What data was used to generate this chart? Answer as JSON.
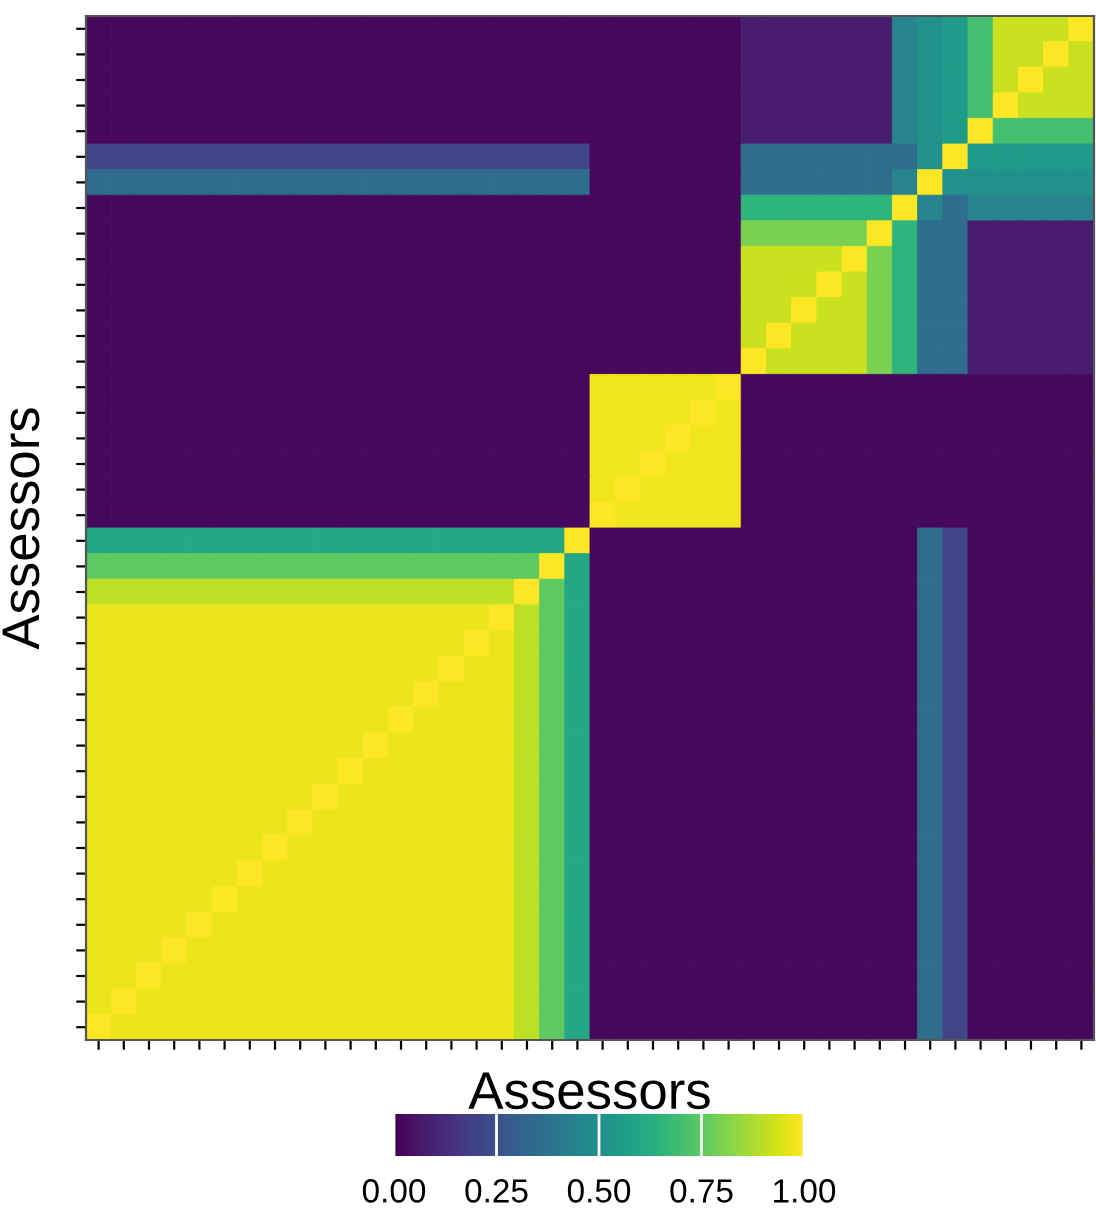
{
  "chart_data": {
    "type": "heatmap",
    "xlabel": "Assessors",
    "ylabel": "Assessors",
    "categories": [
      null,
      null,
      null,
      null,
      null,
      null,
      null,
      null,
      null,
      null,
      null,
      null,
      null,
      null,
      null,
      null,
      null,
      null,
      null,
      null,
      null,
      null,
      null,
      null,
      null,
      null,
      null,
      null,
      null,
      null,
      null,
      null,
      null,
      null,
      null,
      null,
      null,
      null,
      null,
      null
    ],
    "y_categories": [
      null,
      null,
      null,
      null,
      null,
      null,
      null,
      null,
      null,
      null,
      null,
      null,
      null,
      null,
      null,
      null,
      null,
      null,
      null,
      null,
      null,
      null,
      null,
      null,
      null,
      null,
      null,
      null,
      null,
      null,
      null,
      null,
      null,
      null,
      null,
      null,
      null,
      null,
      null,
      null
    ],
    "clim": [
      0,
      1
    ],
    "cticks": [
      {
        "value": 0,
        "label": "0.00"
      },
      {
        "value": 0.25,
        "label": "0.25"
      },
      {
        "value": 0.5,
        "label": "0.50"
      },
      {
        "value": 0.75,
        "label": "0.75"
      },
      {
        "value": 1,
        "label": "1.00"
      }
    ],
    "cells": [
      [
        0.02,
        0.02,
        0.02,
        0.02,
        0.02,
        0.02,
        0.02,
        0.02,
        0.02,
        0.02,
        0.02,
        0.02,
        0.02,
        0.02,
        0.02,
        0.02,
        0.02,
        0.02,
        0.02,
        0.02,
        0.02,
        0.02,
        0.02,
        0.02,
        0.02,
        0.02,
        0.08,
        0.08,
        0.08,
        0.08,
        0.08,
        0.08,
        0.45,
        0.5,
        0.55,
        0.7,
        0.92,
        0.92,
        0.92,
        1
      ],
      [
        0.02,
        0.02,
        0.02,
        0.02,
        0.02,
        0.02,
        0.02,
        0.02,
        0.02,
        0.02,
        0.02,
        0.02,
        0.02,
        0.02,
        0.02,
        0.02,
        0.02,
        0.02,
        0.02,
        0.02,
        0.02,
        0.02,
        0.02,
        0.02,
        0.02,
        0.02,
        0.08,
        0.08,
        0.08,
        0.08,
        0.08,
        0.08,
        0.45,
        0.5,
        0.55,
        0.7,
        0.92,
        0.92,
        1,
        0.92
      ],
      [
        0.02,
        0.02,
        0.02,
        0.02,
        0.02,
        0.02,
        0.02,
        0.02,
        0.02,
        0.02,
        0.02,
        0.02,
        0.02,
        0.02,
        0.02,
        0.02,
        0.02,
        0.02,
        0.02,
        0.02,
        0.02,
        0.02,
        0.02,
        0.02,
        0.02,
        0.02,
        0.08,
        0.08,
        0.08,
        0.08,
        0.08,
        0.08,
        0.45,
        0.5,
        0.55,
        0.7,
        0.92,
        1,
        0.92,
        0.92
      ],
      [
        0.02,
        0.02,
        0.02,
        0.02,
        0.02,
        0.02,
        0.02,
        0.02,
        0.02,
        0.02,
        0.02,
        0.02,
        0.02,
        0.02,
        0.02,
        0.02,
        0.02,
        0.02,
        0.02,
        0.02,
        0.02,
        0.02,
        0.02,
        0.02,
        0.02,
        0.02,
        0.08,
        0.08,
        0.08,
        0.08,
        0.08,
        0.08,
        0.45,
        0.5,
        0.55,
        0.7,
        1,
        0.92,
        0.92,
        0.92
      ],
      [
        0.02,
        0.02,
        0.02,
        0.02,
        0.02,
        0.02,
        0.02,
        0.02,
        0.02,
        0.02,
        0.02,
        0.02,
        0.02,
        0.02,
        0.02,
        0.02,
        0.02,
        0.02,
        0.02,
        0.02,
        0.02,
        0.02,
        0.02,
        0.02,
        0.02,
        0.02,
        0.08,
        0.08,
        0.08,
        0.08,
        0.08,
        0.08,
        0.45,
        0.5,
        0.55,
        1,
        0.7,
        0.7,
        0.7,
        0.7
      ],
      [
        0.2,
        0.2,
        0.2,
        0.2,
        0.2,
        0.2,
        0.2,
        0.2,
        0.2,
        0.2,
        0.2,
        0.2,
        0.2,
        0.2,
        0.2,
        0.2,
        0.2,
        0.2,
        0.2,
        0.2,
        0.02,
        0.02,
        0.02,
        0.02,
        0.02,
        0.02,
        0.35,
        0.35,
        0.35,
        0.35,
        0.35,
        0.35,
        0.35,
        0.5,
        1,
        0.55,
        0.55,
        0.55,
        0.55,
        0.55
      ],
      [
        0.35,
        0.35,
        0.35,
        0.35,
        0.35,
        0.35,
        0.35,
        0.35,
        0.35,
        0.35,
        0.35,
        0.35,
        0.35,
        0.35,
        0.35,
        0.35,
        0.35,
        0.35,
        0.35,
        0.35,
        0.02,
        0.02,
        0.02,
        0.02,
        0.02,
        0.02,
        0.35,
        0.35,
        0.35,
        0.35,
        0.35,
        0.35,
        0.45,
        1,
        0.5,
        0.5,
        0.5,
        0.5,
        0.5,
        0.5
      ],
      [
        0.02,
        0.02,
        0.02,
        0.02,
        0.02,
        0.02,
        0.02,
        0.02,
        0.02,
        0.02,
        0.02,
        0.02,
        0.02,
        0.02,
        0.02,
        0.02,
        0.02,
        0.02,
        0.02,
        0.02,
        0.02,
        0.02,
        0.02,
        0.02,
        0.02,
        0.02,
        0.65,
        0.65,
        0.65,
        0.65,
        0.65,
        0.65,
        1,
        0.45,
        0.35,
        0.45,
        0.45,
        0.45,
        0.45,
        0.45
      ],
      [
        0.02,
        0.02,
        0.02,
        0.02,
        0.02,
        0.02,
        0.02,
        0.02,
        0.02,
        0.02,
        0.02,
        0.02,
        0.02,
        0.02,
        0.02,
        0.02,
        0.02,
        0.02,
        0.02,
        0.02,
        0.02,
        0.02,
        0.02,
        0.02,
        0.02,
        0.02,
        0.8,
        0.8,
        0.8,
        0.8,
        0.8,
        1,
        0.65,
        0.35,
        0.35,
        0.08,
        0.08,
        0.08,
        0.08,
        0.08
      ],
      [
        0.02,
        0.02,
        0.02,
        0.02,
        0.02,
        0.02,
        0.02,
        0.02,
        0.02,
        0.02,
        0.02,
        0.02,
        0.02,
        0.02,
        0.02,
        0.02,
        0.02,
        0.02,
        0.02,
        0.02,
        0.02,
        0.02,
        0.02,
        0.02,
        0.02,
        0.02,
        0.92,
        0.92,
        0.92,
        0.92,
        1,
        0.8,
        0.65,
        0.35,
        0.35,
        0.08,
        0.08,
        0.08,
        0.08,
        0.08
      ],
      [
        0.02,
        0.02,
        0.02,
        0.02,
        0.02,
        0.02,
        0.02,
        0.02,
        0.02,
        0.02,
        0.02,
        0.02,
        0.02,
        0.02,
        0.02,
        0.02,
        0.02,
        0.02,
        0.02,
        0.02,
        0.02,
        0.02,
        0.02,
        0.02,
        0.02,
        0.02,
        0.92,
        0.92,
        0.92,
        1,
        0.92,
        0.8,
        0.65,
        0.35,
        0.35,
        0.08,
        0.08,
        0.08,
        0.08,
        0.08
      ],
      [
        0.02,
        0.02,
        0.02,
        0.02,
        0.02,
        0.02,
        0.02,
        0.02,
        0.02,
        0.02,
        0.02,
        0.02,
        0.02,
        0.02,
        0.02,
        0.02,
        0.02,
        0.02,
        0.02,
        0.02,
        0.02,
        0.02,
        0.02,
        0.02,
        0.02,
        0.02,
        0.92,
        0.92,
        1,
        0.92,
        0.92,
        0.8,
        0.65,
        0.35,
        0.35,
        0.08,
        0.08,
        0.08,
        0.08,
        0.08
      ],
      [
        0.02,
        0.02,
        0.02,
        0.02,
        0.02,
        0.02,
        0.02,
        0.02,
        0.02,
        0.02,
        0.02,
        0.02,
        0.02,
        0.02,
        0.02,
        0.02,
        0.02,
        0.02,
        0.02,
        0.02,
        0.02,
        0.02,
        0.02,
        0.02,
        0.02,
        0.02,
        0.92,
        1,
        0.92,
        0.92,
        0.92,
        0.8,
        0.65,
        0.35,
        0.35,
        0.08,
        0.08,
        0.08,
        0.08,
        0.08
      ],
      [
        0.02,
        0.02,
        0.02,
        0.02,
        0.02,
        0.02,
        0.02,
        0.02,
        0.02,
        0.02,
        0.02,
        0.02,
        0.02,
        0.02,
        0.02,
        0.02,
        0.02,
        0.02,
        0.02,
        0.02,
        0.02,
        0.02,
        0.02,
        0.02,
        0.02,
        0.02,
        1,
        0.92,
        0.92,
        0.92,
        0.92,
        0.8,
        0.65,
        0.35,
        0.35,
        0.08,
        0.08,
        0.08,
        0.08,
        0.08
      ],
      [
        0.02,
        0.02,
        0.02,
        0.02,
        0.02,
        0.02,
        0.02,
        0.02,
        0.02,
        0.02,
        0.02,
        0.02,
        0.02,
        0.02,
        0.02,
        0.02,
        0.02,
        0.02,
        0.02,
        0.02,
        0.98,
        0.98,
        0.98,
        0.98,
        0.98,
        1,
        0.02,
        0.02,
        0.02,
        0.02,
        0.02,
        0.02,
        0.02,
        0.02,
        0.02,
        0.02,
        0.02,
        0.02,
        0.02,
        0.02
      ],
      [
        0.02,
        0.02,
        0.02,
        0.02,
        0.02,
        0.02,
        0.02,
        0.02,
        0.02,
        0.02,
        0.02,
        0.02,
        0.02,
        0.02,
        0.02,
        0.02,
        0.02,
        0.02,
        0.02,
        0.02,
        0.98,
        0.98,
        0.98,
        0.98,
        1,
        0.98,
        0.02,
        0.02,
        0.02,
        0.02,
        0.02,
        0.02,
        0.02,
        0.02,
        0.02,
        0.02,
        0.02,
        0.02,
        0.02,
        0.02
      ],
      [
        0.02,
        0.02,
        0.02,
        0.02,
        0.02,
        0.02,
        0.02,
        0.02,
        0.02,
        0.02,
        0.02,
        0.02,
        0.02,
        0.02,
        0.02,
        0.02,
        0.02,
        0.02,
        0.02,
        0.02,
        0.98,
        0.98,
        0.98,
        1,
        0.98,
        0.98,
        0.02,
        0.02,
        0.02,
        0.02,
        0.02,
        0.02,
        0.02,
        0.02,
        0.02,
        0.02,
        0.02,
        0.02,
        0.02,
        0.02
      ],
      [
        0.02,
        0.02,
        0.02,
        0.02,
        0.02,
        0.02,
        0.02,
        0.02,
        0.02,
        0.02,
        0.02,
        0.02,
        0.02,
        0.02,
        0.02,
        0.02,
        0.02,
        0.02,
        0.02,
        0.02,
        0.98,
        0.98,
        1,
        0.98,
        0.98,
        0.98,
        0.02,
        0.02,
        0.02,
        0.02,
        0.02,
        0.02,
        0.02,
        0.02,
        0.02,
        0.02,
        0.02,
        0.02,
        0.02,
        0.02
      ],
      [
        0.02,
        0.02,
        0.02,
        0.02,
        0.02,
        0.02,
        0.02,
        0.02,
        0.02,
        0.02,
        0.02,
        0.02,
        0.02,
        0.02,
        0.02,
        0.02,
        0.02,
        0.02,
        0.02,
        0.02,
        0.98,
        1,
        0.98,
        0.98,
        0.98,
        0.98,
        0.02,
        0.02,
        0.02,
        0.02,
        0.02,
        0.02,
        0.02,
        0.02,
        0.02,
        0.02,
        0.02,
        0.02,
        0.02,
        0.02
      ],
      [
        0.02,
        0.02,
        0.02,
        0.02,
        0.02,
        0.02,
        0.02,
        0.02,
        0.02,
        0.02,
        0.02,
        0.02,
        0.02,
        0.02,
        0.02,
        0.02,
        0.02,
        0.02,
        0.02,
        0.02,
        1,
        0.98,
        0.98,
        0.98,
        0.98,
        0.98,
        0.02,
        0.02,
        0.02,
        0.02,
        0.02,
        0.02,
        0.02,
        0.02,
        0.02,
        0.02,
        0.02,
        0.02,
        0.02,
        0.02
      ],
      [
        0.6,
        0.6,
        0.6,
        0.6,
        0.6,
        0.6,
        0.6,
        0.6,
        0.6,
        0.6,
        0.6,
        0.6,
        0.6,
        0.6,
        0.6,
        0.6,
        0.6,
        0.6,
        0.6,
        1,
        0.02,
        0.02,
        0.02,
        0.02,
        0.02,
        0.02,
        0.02,
        0.02,
        0.02,
        0.02,
        0.02,
        0.02,
        0.02,
        0.35,
        0.2,
        0.02,
        0.02,
        0.02,
        0.02,
        0.02
      ],
      [
        0.75,
        0.75,
        0.75,
        0.75,
        0.75,
        0.75,
        0.75,
        0.75,
        0.75,
        0.75,
        0.75,
        0.75,
        0.75,
        0.75,
        0.75,
        0.75,
        0.75,
        0.75,
        1,
        0.6,
        0.02,
        0.02,
        0.02,
        0.02,
        0.02,
        0.02,
        0.02,
        0.02,
        0.02,
        0.02,
        0.02,
        0.02,
        0.02,
        0.35,
        0.2,
        0.02,
        0.02,
        0.02,
        0.02,
        0.02
      ],
      [
        0.9,
        0.9,
        0.9,
        0.9,
        0.9,
        0.9,
        0.9,
        0.9,
        0.9,
        0.9,
        0.9,
        0.9,
        0.9,
        0.9,
        0.9,
        0.9,
        0.9,
        1,
        0.75,
        0.6,
        0.02,
        0.02,
        0.02,
        0.02,
        0.02,
        0.02,
        0.02,
        0.02,
        0.02,
        0.02,
        0.02,
        0.02,
        0.02,
        0.35,
        0.2,
        0.02,
        0.02,
        0.02,
        0.02,
        0.02
      ],
      [
        0.97,
        0.97,
        0.97,
        0.97,
        0.97,
        0.97,
        0.97,
        0.97,
        0.97,
        0.97,
        0.97,
        0.97,
        0.97,
        0.97,
        0.97,
        0.97,
        1,
        0.9,
        0.75,
        0.6,
        0.02,
        0.02,
        0.02,
        0.02,
        0.02,
        0.02,
        0.02,
        0.02,
        0.02,
        0.02,
        0.02,
        0.02,
        0.02,
        0.35,
        0.2,
        0.02,
        0.02,
        0.02,
        0.02,
        0.02
      ],
      [
        0.97,
        0.97,
        0.97,
        0.97,
        0.97,
        0.97,
        0.97,
        0.97,
        0.97,
        0.97,
        0.97,
        0.97,
        0.97,
        0.97,
        0.97,
        1,
        0.97,
        0.9,
        0.75,
        0.6,
        0.02,
        0.02,
        0.02,
        0.02,
        0.02,
        0.02,
        0.02,
        0.02,
        0.02,
        0.02,
        0.02,
        0.02,
        0.02,
        0.35,
        0.2,
        0.02,
        0.02,
        0.02,
        0.02,
        0.02
      ],
      [
        0.97,
        0.97,
        0.97,
        0.97,
        0.97,
        0.97,
        0.97,
        0.97,
        0.97,
        0.97,
        0.97,
        0.97,
        0.97,
        0.97,
        1,
        0.97,
        0.97,
        0.9,
        0.75,
        0.6,
        0.02,
        0.02,
        0.02,
        0.02,
        0.02,
        0.02,
        0.02,
        0.02,
        0.02,
        0.02,
        0.02,
        0.02,
        0.02,
        0.35,
        0.2,
        0.02,
        0.02,
        0.02,
        0.02,
        0.02
      ],
      [
        0.97,
        0.97,
        0.97,
        0.97,
        0.97,
        0.97,
        0.97,
        0.97,
        0.97,
        0.97,
        0.97,
        0.97,
        0.97,
        1,
        0.97,
        0.97,
        0.97,
        0.9,
        0.75,
        0.6,
        0.02,
        0.02,
        0.02,
        0.02,
        0.02,
        0.02,
        0.02,
        0.02,
        0.02,
        0.02,
        0.02,
        0.02,
        0.02,
        0.35,
        0.2,
        0.02,
        0.02,
        0.02,
        0.02,
        0.02
      ],
      [
        0.97,
        0.97,
        0.97,
        0.97,
        0.97,
        0.97,
        0.97,
        0.97,
        0.97,
        0.97,
        0.97,
        0.97,
        1,
        0.97,
        0.97,
        0.97,
        0.97,
        0.9,
        0.75,
        0.6,
        0.02,
        0.02,
        0.02,
        0.02,
        0.02,
        0.02,
        0.02,
        0.02,
        0.02,
        0.02,
        0.02,
        0.02,
        0.02,
        0.35,
        0.2,
        0.02,
        0.02,
        0.02,
        0.02,
        0.02
      ],
      [
        0.97,
        0.97,
        0.97,
        0.97,
        0.97,
        0.97,
        0.97,
        0.97,
        0.97,
        0.97,
        0.97,
        1,
        0.97,
        0.97,
        0.97,
        0.97,
        0.97,
        0.9,
        0.75,
        0.6,
        0.02,
        0.02,
        0.02,
        0.02,
        0.02,
        0.02,
        0.02,
        0.02,
        0.02,
        0.02,
        0.02,
        0.02,
        0.02,
        0.35,
        0.2,
        0.02,
        0.02,
        0.02,
        0.02,
        0.02
      ],
      [
        0.97,
        0.97,
        0.97,
        0.97,
        0.97,
        0.97,
        0.97,
        0.97,
        0.97,
        0.97,
        1,
        0.97,
        0.97,
        0.97,
        0.97,
        0.97,
        0.97,
        0.9,
        0.75,
        0.6,
        0.02,
        0.02,
        0.02,
        0.02,
        0.02,
        0.02,
        0.02,
        0.02,
        0.02,
        0.02,
        0.02,
        0.02,
        0.02,
        0.35,
        0.2,
        0.02,
        0.02,
        0.02,
        0.02,
        0.02
      ],
      [
        0.97,
        0.97,
        0.97,
        0.97,
        0.97,
        0.97,
        0.97,
        0.97,
        0.97,
        1,
        0.97,
        0.97,
        0.97,
        0.97,
        0.97,
        0.97,
        0.97,
        0.9,
        0.75,
        0.6,
        0.02,
        0.02,
        0.02,
        0.02,
        0.02,
        0.02,
        0.02,
        0.02,
        0.02,
        0.02,
        0.02,
        0.02,
        0.02,
        0.35,
        0.2,
        0.02,
        0.02,
        0.02,
        0.02,
        0.02
      ],
      [
        0.97,
        0.97,
        0.97,
        0.97,
        0.97,
        0.97,
        0.97,
        0.97,
        1,
        0.97,
        0.97,
        0.97,
        0.97,
        0.97,
        0.97,
        0.97,
        0.97,
        0.9,
        0.75,
        0.6,
        0.02,
        0.02,
        0.02,
        0.02,
        0.02,
        0.02,
        0.02,
        0.02,
        0.02,
        0.02,
        0.02,
        0.02,
        0.02,
        0.35,
        0.2,
        0.02,
        0.02,
        0.02,
        0.02,
        0.02
      ],
      [
        0.97,
        0.97,
        0.97,
        0.97,
        0.97,
        0.97,
        0.97,
        1,
        0.97,
        0.97,
        0.97,
        0.97,
        0.97,
        0.97,
        0.97,
        0.97,
        0.97,
        0.9,
        0.75,
        0.6,
        0.02,
        0.02,
        0.02,
        0.02,
        0.02,
        0.02,
        0.02,
        0.02,
        0.02,
        0.02,
        0.02,
        0.02,
        0.02,
        0.35,
        0.2,
        0.02,
        0.02,
        0.02,
        0.02,
        0.02
      ],
      [
        0.97,
        0.97,
        0.97,
        0.97,
        0.97,
        0.97,
        1,
        0.97,
        0.97,
        0.97,
        0.97,
        0.97,
        0.97,
        0.97,
        0.97,
        0.97,
        0.97,
        0.9,
        0.75,
        0.6,
        0.02,
        0.02,
        0.02,
        0.02,
        0.02,
        0.02,
        0.02,
        0.02,
        0.02,
        0.02,
        0.02,
        0.02,
        0.02,
        0.35,
        0.2,
        0.02,
        0.02,
        0.02,
        0.02,
        0.02
      ],
      [
        0.97,
        0.97,
        0.97,
        0.97,
        0.97,
        1,
        0.97,
        0.97,
        0.97,
        0.97,
        0.97,
        0.97,
        0.97,
        0.97,
        0.97,
        0.97,
        0.97,
        0.9,
        0.75,
        0.6,
        0.02,
        0.02,
        0.02,
        0.02,
        0.02,
        0.02,
        0.02,
        0.02,
        0.02,
        0.02,
        0.02,
        0.02,
        0.02,
        0.35,
        0.2,
        0.02,
        0.02,
        0.02,
        0.02,
        0.02
      ],
      [
        0.97,
        0.97,
        0.97,
        0.97,
        1,
        0.97,
        0.97,
        0.97,
        0.97,
        0.97,
        0.97,
        0.97,
        0.97,
        0.97,
        0.97,
        0.97,
        0.97,
        0.9,
        0.75,
        0.6,
        0.02,
        0.02,
        0.02,
        0.02,
        0.02,
        0.02,
        0.02,
        0.02,
        0.02,
        0.02,
        0.02,
        0.02,
        0.02,
        0.35,
        0.2,
        0.02,
        0.02,
        0.02,
        0.02,
        0.02
      ],
      [
        0.97,
        0.97,
        0.97,
        1,
        0.97,
        0.97,
        0.97,
        0.97,
        0.97,
        0.97,
        0.97,
        0.97,
        0.97,
        0.97,
        0.97,
        0.97,
        0.97,
        0.9,
        0.75,
        0.6,
        0.02,
        0.02,
        0.02,
        0.02,
        0.02,
        0.02,
        0.02,
        0.02,
        0.02,
        0.02,
        0.02,
        0.02,
        0.02,
        0.35,
        0.2,
        0.02,
        0.02,
        0.02,
        0.02,
        0.02
      ],
      [
        0.97,
        0.97,
        1,
        0.97,
        0.97,
        0.97,
        0.97,
        0.97,
        0.97,
        0.97,
        0.97,
        0.97,
        0.97,
        0.97,
        0.97,
        0.97,
        0.97,
        0.9,
        0.75,
        0.6,
        0.02,
        0.02,
        0.02,
        0.02,
        0.02,
        0.02,
        0.02,
        0.02,
        0.02,
        0.02,
        0.02,
        0.02,
        0.02,
        0.35,
        0.2,
        0.02,
        0.02,
        0.02,
        0.02,
        0.02
      ],
      [
        0.97,
        1,
        0.97,
        0.97,
        0.97,
        0.97,
        0.97,
        0.97,
        0.97,
        0.97,
        0.97,
        0.97,
        0.97,
        0.97,
        0.97,
        0.97,
        0.97,
        0.9,
        0.75,
        0.6,
        0.02,
        0.02,
        0.02,
        0.02,
        0.02,
        0.02,
        0.02,
        0.02,
        0.02,
        0.02,
        0.02,
        0.02,
        0.02,
        0.35,
        0.2,
        0.02,
        0.02,
        0.02,
        0.02,
        0.02
      ],
      [
        1,
        0.97,
        0.97,
        0.97,
        0.97,
        0.97,
        0.97,
        0.97,
        0.97,
        0.97,
        0.97,
        0.97,
        0.97,
        0.97,
        0.97,
        0.97,
        0.97,
        0.9,
        0.75,
        0.6,
        0.02,
        0.02,
        0.02,
        0.02,
        0.02,
        0.02,
        0.02,
        0.02,
        0.02,
        0.02,
        0.02,
        0.02,
        0.02,
        0.35,
        0.2,
        0.02,
        0.02,
        0.02,
        0.02,
        0.02
      ]
    ]
  }
}
